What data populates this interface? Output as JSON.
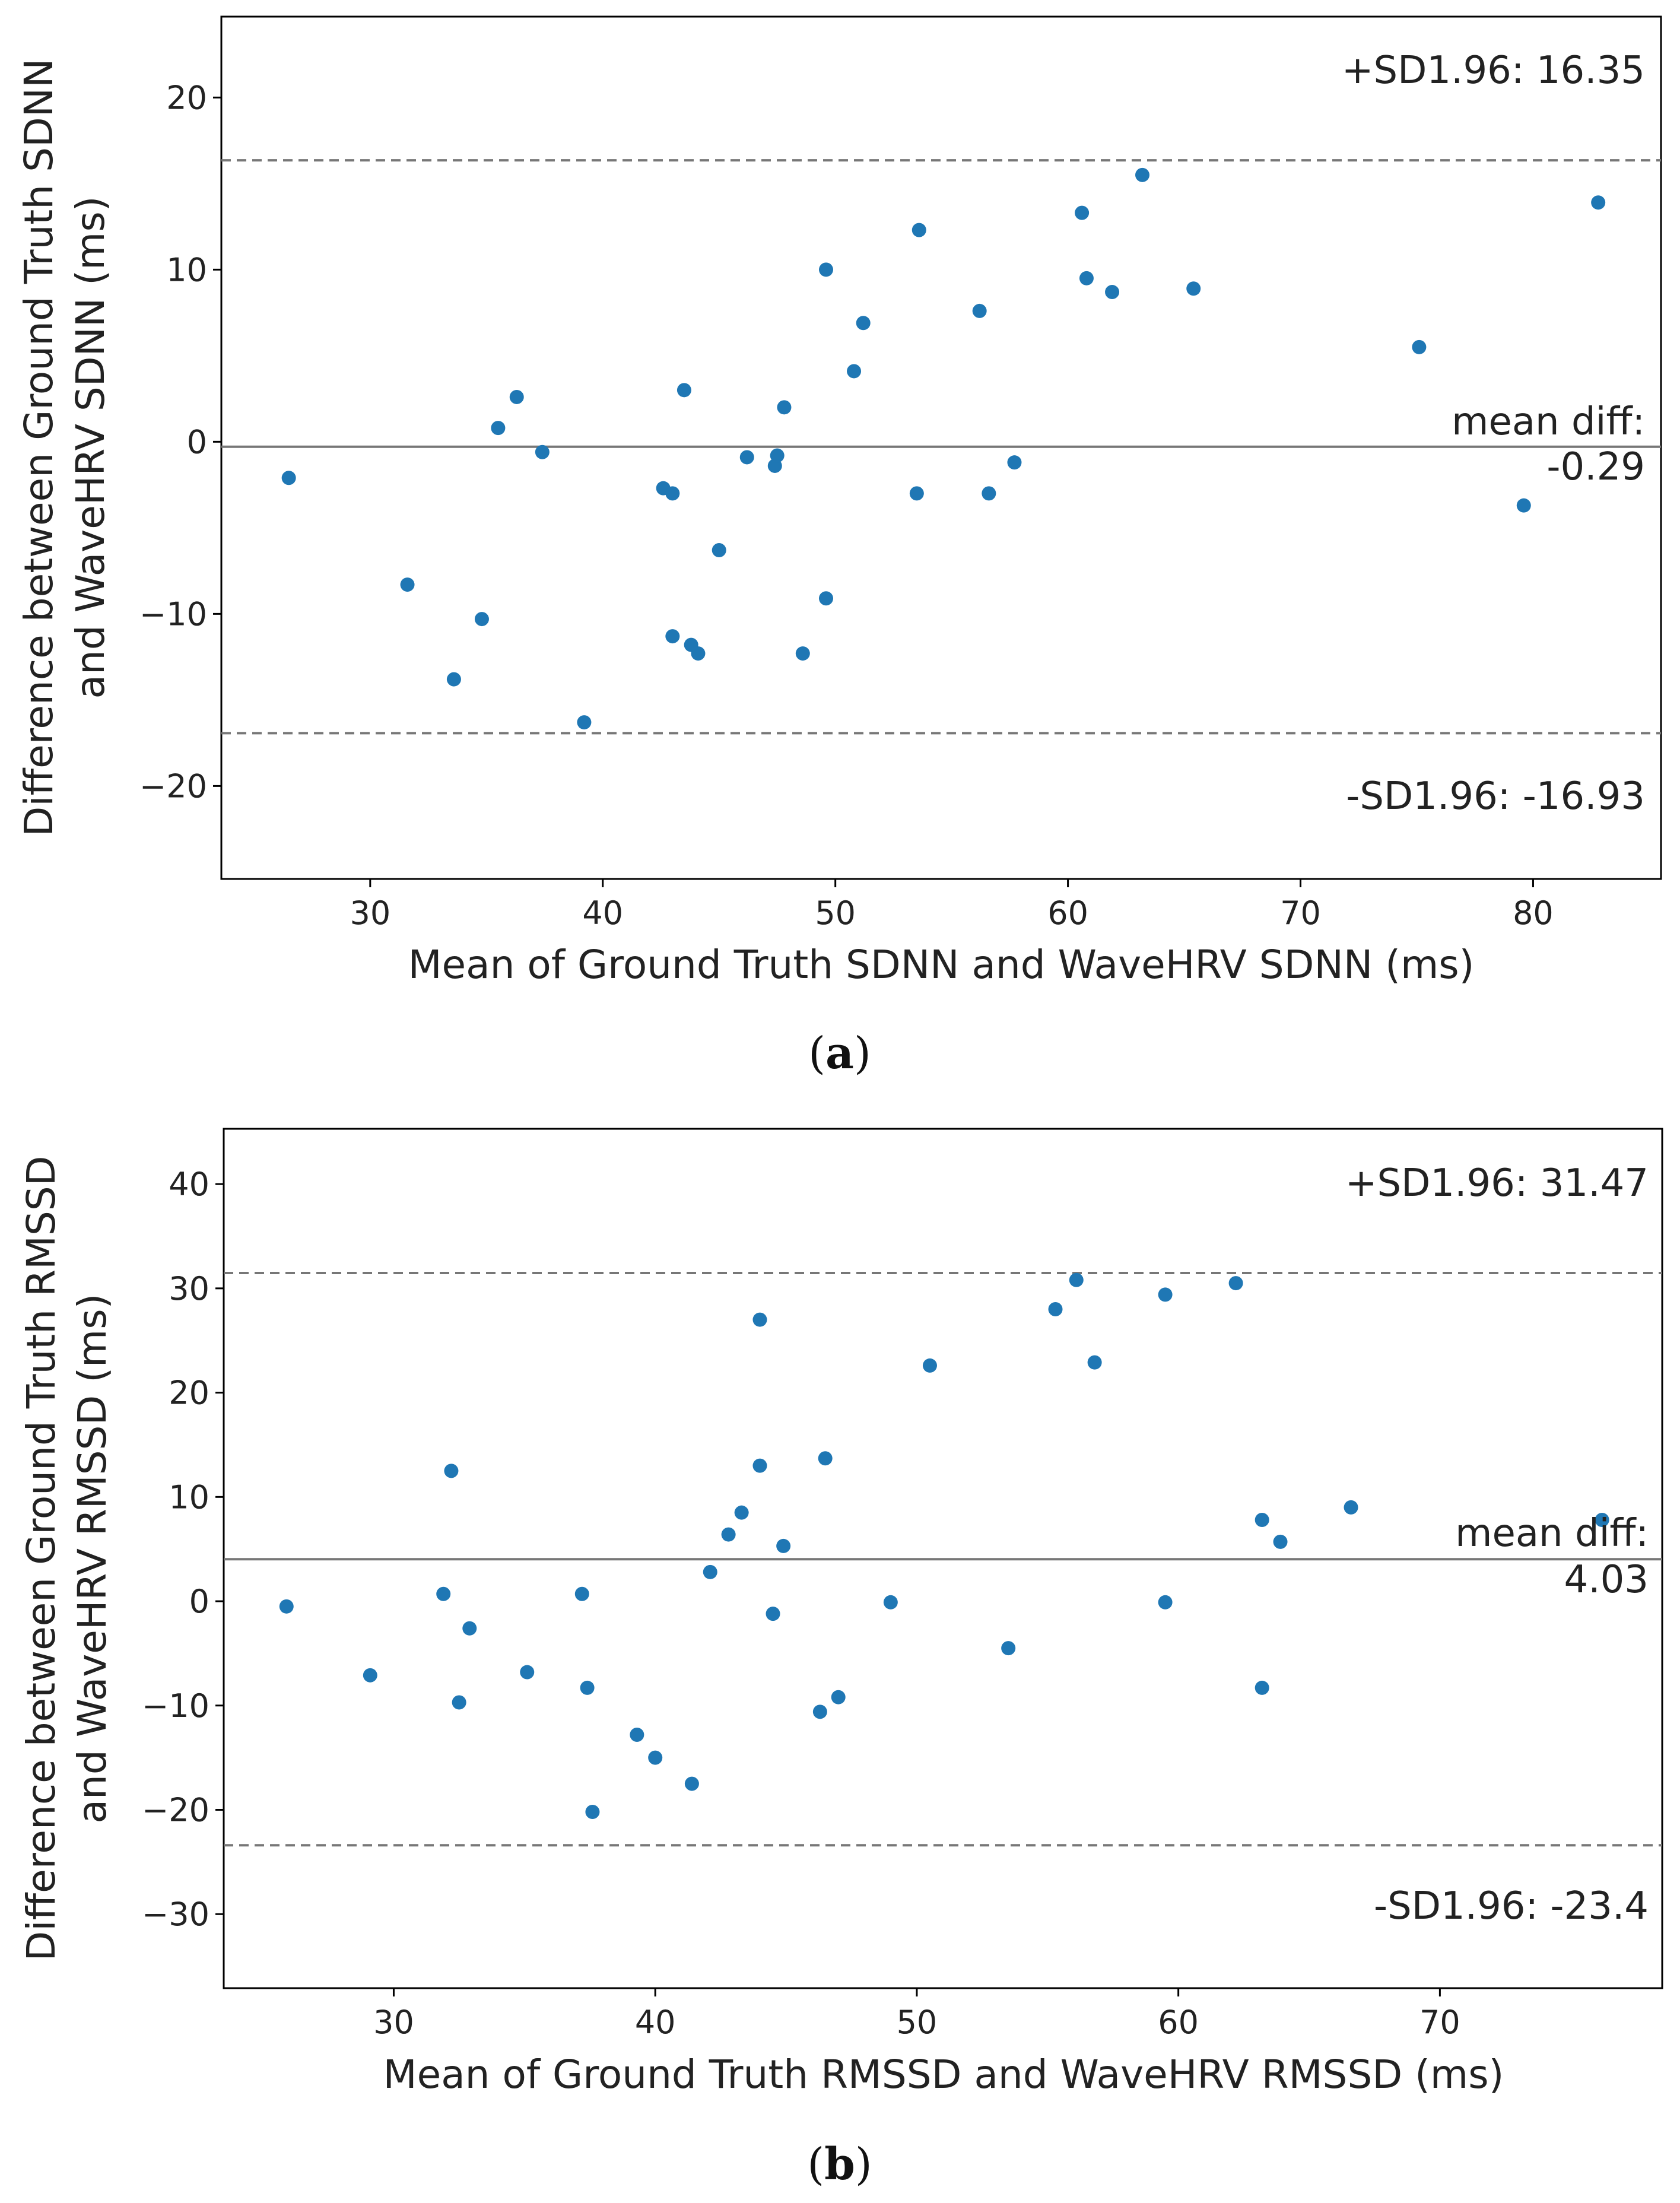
{
  "chart_data": [
    {
      "type": "scatter",
      "panel_label": "a",
      "xlabel": "Mean of Ground Truth SDNN and WaveHRV SDNN (ms)",
      "ylabel_lines": [
        "Difference between Ground Truth SDNN",
        "and WaveHRV SDNN (ms)"
      ],
      "xlim": [
        23.6,
        85.5
      ],
      "ylim": [
        -25.4,
        24.7
      ],
      "xticks": [
        30,
        40,
        50,
        60,
        70,
        80
      ],
      "yticks": [
        -20,
        -10,
        0,
        10,
        20
      ],
      "mean_diff": -0.29,
      "upper_loa": 16.35,
      "lower_loa": -16.93,
      "annotations": {
        "upper": "+SD1.96: 16.35",
        "mean_line1": "mean diff:",
        "mean_line2": "-0.29",
        "lower": "-SD1.96: -16.93"
      },
      "marker_color": "#1f77b4",
      "points": [
        [
          26.5,
          -2.1
        ],
        [
          31.6,
          -8.3
        ],
        [
          33.6,
          -13.8
        ],
        [
          34.8,
          -10.3
        ],
        [
          35.5,
          0.8
        ],
        [
          36.3,
          2.6
        ],
        [
          37.4,
          -0.6
        ],
        [
          39.2,
          -16.3
        ],
        [
          42.6,
          -2.7
        ],
        [
          43.0,
          -3.0
        ],
        [
          43.0,
          -11.3
        ],
        [
          43.5,
          3.0
        ],
        [
          43.8,
          -11.8
        ],
        [
          44.1,
          -12.3
        ],
        [
          45.0,
          -6.3
        ],
        [
          46.2,
          -0.9
        ],
        [
          47.4,
          -1.4
        ],
        [
          47.5,
          -0.8
        ],
        [
          47.8,
          2.0
        ],
        [
          48.6,
          -12.3
        ],
        [
          49.6,
          -9.1
        ],
        [
          49.6,
          10.0
        ],
        [
          50.8,
          4.1
        ],
        [
          51.2,
          6.9
        ],
        [
          53.5,
          -3.0
        ],
        [
          53.6,
          12.3
        ],
        [
          56.2,
          7.6
        ],
        [
          56.6,
          -3.0
        ],
        [
          57.7,
          -1.2
        ],
        [
          60.6,
          13.3
        ],
        [
          60.8,
          9.5
        ],
        [
          61.9,
          8.7
        ],
        [
          63.2,
          15.5
        ],
        [
          65.4,
          8.9
        ],
        [
          75.1,
          5.5
        ],
        [
          79.6,
          -3.7
        ],
        [
          82.8,
          13.9
        ]
      ]
    },
    {
      "type": "scatter",
      "panel_label": "b",
      "xlabel": "Mean of Ground Truth RMSSD and WaveHRV RMSSD (ms)",
      "ylabel_lines": [
        "Difference between Ground Truth RMSSD",
        "and WaveHRV RMSSD (ms)"
      ],
      "xlim": [
        23.5,
        78.5
      ],
      "ylim": [
        -37.1,
        45.3
      ],
      "xticks": [
        30,
        40,
        50,
        60,
        70
      ],
      "yticks": [
        -30,
        -20,
        -10,
        0,
        10,
        20,
        30,
        40
      ],
      "mean_diff": 4.03,
      "upper_loa": 31.47,
      "lower_loa": -23.4,
      "annotations": {
        "upper": "+SD1.96: 31.47",
        "mean_line1": "mean diff:",
        "mean_line2": "4.03",
        "lower": "-SD1.96: -23.4"
      },
      "marker_color": "#1f77b4",
      "points": [
        [
          25.9,
          -0.5
        ],
        [
          29.1,
          -7.1
        ],
        [
          31.9,
          0.7
        ],
        [
          32.2,
          12.5
        ],
        [
          32.5,
          -9.7
        ],
        [
          32.9,
          -2.6
        ],
        [
          35.1,
          -6.8
        ],
        [
          37.2,
          0.7
        ],
        [
          37.4,
          -8.3
        ],
        [
          37.6,
          -20.2
        ],
        [
          39.3,
          -12.8
        ],
        [
          40.0,
          -15.0
        ],
        [
          41.4,
          -17.5
        ],
        [
          42.1,
          2.8
        ],
        [
          42.8,
          6.4
        ],
        [
          43.3,
          8.5
        ],
        [
          44.0,
          13.0
        ],
        [
          44.0,
          27.0
        ],
        [
          44.5,
          -1.2
        ],
        [
          44.9,
          5.3
        ],
        [
          46.3,
          -10.6
        ],
        [
          46.5,
          13.7
        ],
        [
          47.0,
          -9.2
        ],
        [
          49.0,
          -0.1
        ],
        [
          50.5,
          22.6
        ],
        [
          53.5,
          -4.5
        ],
        [
          55.3,
          28.0
        ],
        [
          56.1,
          30.8
        ],
        [
          56.8,
          22.9
        ],
        [
          59.5,
          -0.1
        ],
        [
          59.5,
          29.4
        ],
        [
          62.2,
          30.5
        ],
        [
          63.2,
          7.8
        ],
        [
          63.2,
          -8.3
        ],
        [
          63.9,
          5.7
        ],
        [
          66.6,
          9.0
        ],
        [
          76.2,
          7.8
        ]
      ]
    }
  ]
}
